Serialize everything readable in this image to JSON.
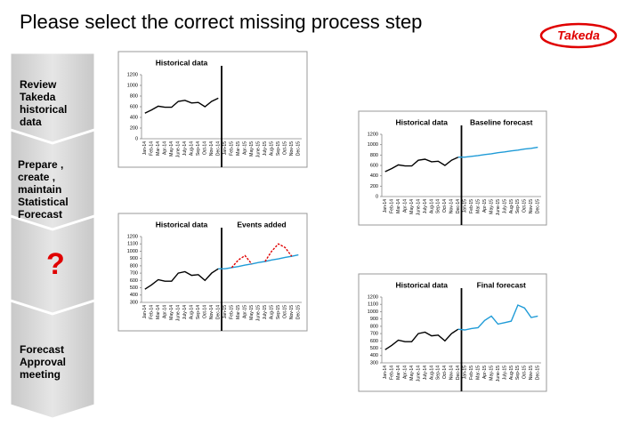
{
  "title": "Please select the correct missing process step",
  "logo": "Takeda",
  "steps": [
    "Review\nTakeda\nhistorical\ndata",
    "Prepare ,\ncreate ,\nmaintain\nStatistical\nForecast",
    "?",
    "Forecast\nApproval\nmeeting"
  ],
  "chart_data": [
    {
      "type": "line",
      "annotations": [
        "Historical data"
      ],
      "categories": [
        "Jan-14",
        "Feb-14",
        "Mar-14",
        "Apr-14",
        "May-14",
        "June-14",
        "July-14",
        "Aug-14",
        "Sep-14",
        "Oct-14",
        "Nov-14",
        "Dec-14",
        "Jan-15",
        "Feb-15",
        "Mar-15",
        "Apr-15",
        "May-15",
        "June-15",
        "July-15",
        "Aug-15",
        "Sep-15",
        "Oct-15",
        "Nov-15",
        "Dec-15"
      ],
      "series": [
        {
          "name": "Historical",
          "color": "#000000",
          "values": [
            480,
            540,
            610,
            590,
            590,
            700,
            720,
            670,
            680,
            600,
            700,
            760,
            null,
            null,
            null,
            null,
            null,
            null,
            null,
            null,
            null,
            null,
            null,
            null
          ]
        }
      ],
      "ylim": [
        0,
        1200
      ],
      "yticks": [
        0,
        200,
        400,
        600,
        800,
        1000,
        1200
      ],
      "grid": false
    },
    {
      "type": "line",
      "annotations": [
        "Historical data",
        "Baseline forecast"
      ],
      "categories": [
        "Jan-14",
        "Feb-14",
        "Mar-14",
        "Apr-14",
        "May-14",
        "June-14",
        "July-14",
        "Aug-14",
        "Sep-14",
        "Oct-14",
        "Nov-14",
        "Dec-14",
        "Jan-15",
        "Feb-15",
        "Mar-15",
        "Apr-15",
        "May-15",
        "June-15",
        "July-15",
        "Aug-15",
        "Sep-15",
        "Oct-15",
        "Nov-15",
        "Dec-15"
      ],
      "series": [
        {
          "name": "Historical",
          "color": "#000000",
          "values": [
            480,
            540,
            610,
            590,
            590,
            700,
            720,
            670,
            680,
            600,
            700,
            760,
            null,
            null,
            null,
            null,
            null,
            null,
            null,
            null,
            null,
            null,
            null,
            null
          ]
        },
        {
          "name": "Baseline",
          "color": "#1f9bd7",
          "values": [
            null,
            null,
            null,
            null,
            null,
            null,
            null,
            null,
            null,
            null,
            null,
            760,
            760,
            775,
            790,
            810,
            825,
            845,
            860,
            880,
            895,
            915,
            930,
            950
          ]
        }
      ],
      "ylim": [
        0,
        1200
      ],
      "yticks": [
        0,
        200,
        400,
        600,
        800,
        1000,
        1200
      ],
      "grid": false
    },
    {
      "type": "line",
      "annotations": [
        "Historical data",
        "Events added"
      ],
      "categories": [
        "Jan-14",
        "Feb-14",
        "Mar-14",
        "Apr-14",
        "May-14",
        "June-14",
        "July-14",
        "Aug-14",
        "Sep-14",
        "Oct-14",
        "Nov-14",
        "Dec-14",
        "Jan-15",
        "Feb-15",
        "Mar-15",
        "Apr-15",
        "May-15",
        "June-15",
        "July-15",
        "Aug-15",
        "Sep-15",
        "Oct-15",
        "Nov-15",
        "Dec-15"
      ],
      "series": [
        {
          "name": "Historical",
          "color": "#000000",
          "values": [
            480,
            540,
            610,
            590,
            590,
            700,
            720,
            670,
            680,
            600,
            700,
            760,
            null,
            null,
            null,
            null,
            null,
            null,
            null,
            null,
            null,
            null,
            null,
            null
          ]
        },
        {
          "name": "Baseline",
          "color": "#1f9bd7",
          "values": [
            null,
            null,
            null,
            null,
            null,
            null,
            null,
            null,
            null,
            null,
            null,
            760,
            760,
            775,
            790,
            810,
            825,
            845,
            860,
            880,
            895,
            915,
            930,
            950
          ]
        },
        {
          "name": "Events",
          "color": "#e00000",
          "dash": true,
          "values": [
            null,
            null,
            null,
            null,
            null,
            null,
            null,
            null,
            null,
            null,
            null,
            null,
            null,
            775,
            880,
            940,
            825,
            null,
            860,
            1000,
            1100,
            1050,
            930,
            null
          ]
        }
      ],
      "ylim": [
        300,
        1200
      ],
      "yticks": [
        300,
        400,
        500,
        600,
        700,
        800,
        900,
        1000,
        1100,
        1200
      ],
      "grid": false
    },
    {
      "type": "line",
      "annotations": [
        "Historical data",
        "Final forecast"
      ],
      "categories": [
        "Jan-14",
        "Feb-14",
        "Mar-14",
        "Apr-14",
        "May-14",
        "June-14",
        "July-14",
        "Aug-14",
        "Sep-14",
        "Oct-14",
        "Nov-14",
        "Dec-14",
        "Jan-15",
        "Feb-15",
        "Mar-15",
        "Apr-15",
        "May-15",
        "June-15",
        "July-15",
        "Aug-15",
        "Sep-15",
        "Oct-15",
        "Nov-15",
        "Dec-15"
      ],
      "series": [
        {
          "name": "Historical",
          "color": "#000000",
          "values": [
            480,
            540,
            610,
            590,
            590,
            700,
            720,
            670,
            680,
            600,
            700,
            760,
            null,
            null,
            null,
            null,
            null,
            null,
            null,
            null,
            null,
            null,
            null,
            null
          ]
        },
        {
          "name": "Final",
          "color": "#1f9bd7",
          "values": [
            null,
            null,
            null,
            null,
            null,
            null,
            null,
            null,
            null,
            null,
            null,
            760,
            750,
            770,
            780,
            880,
            940,
            830,
            850,
            870,
            1090,
            1050,
            920,
            940
          ]
        }
      ],
      "ylim": [
        300,
        1200
      ],
      "yticks": [
        300,
        400,
        500,
        600,
        700,
        800,
        900,
        1000,
        1100,
        1200
      ],
      "grid": false
    }
  ]
}
